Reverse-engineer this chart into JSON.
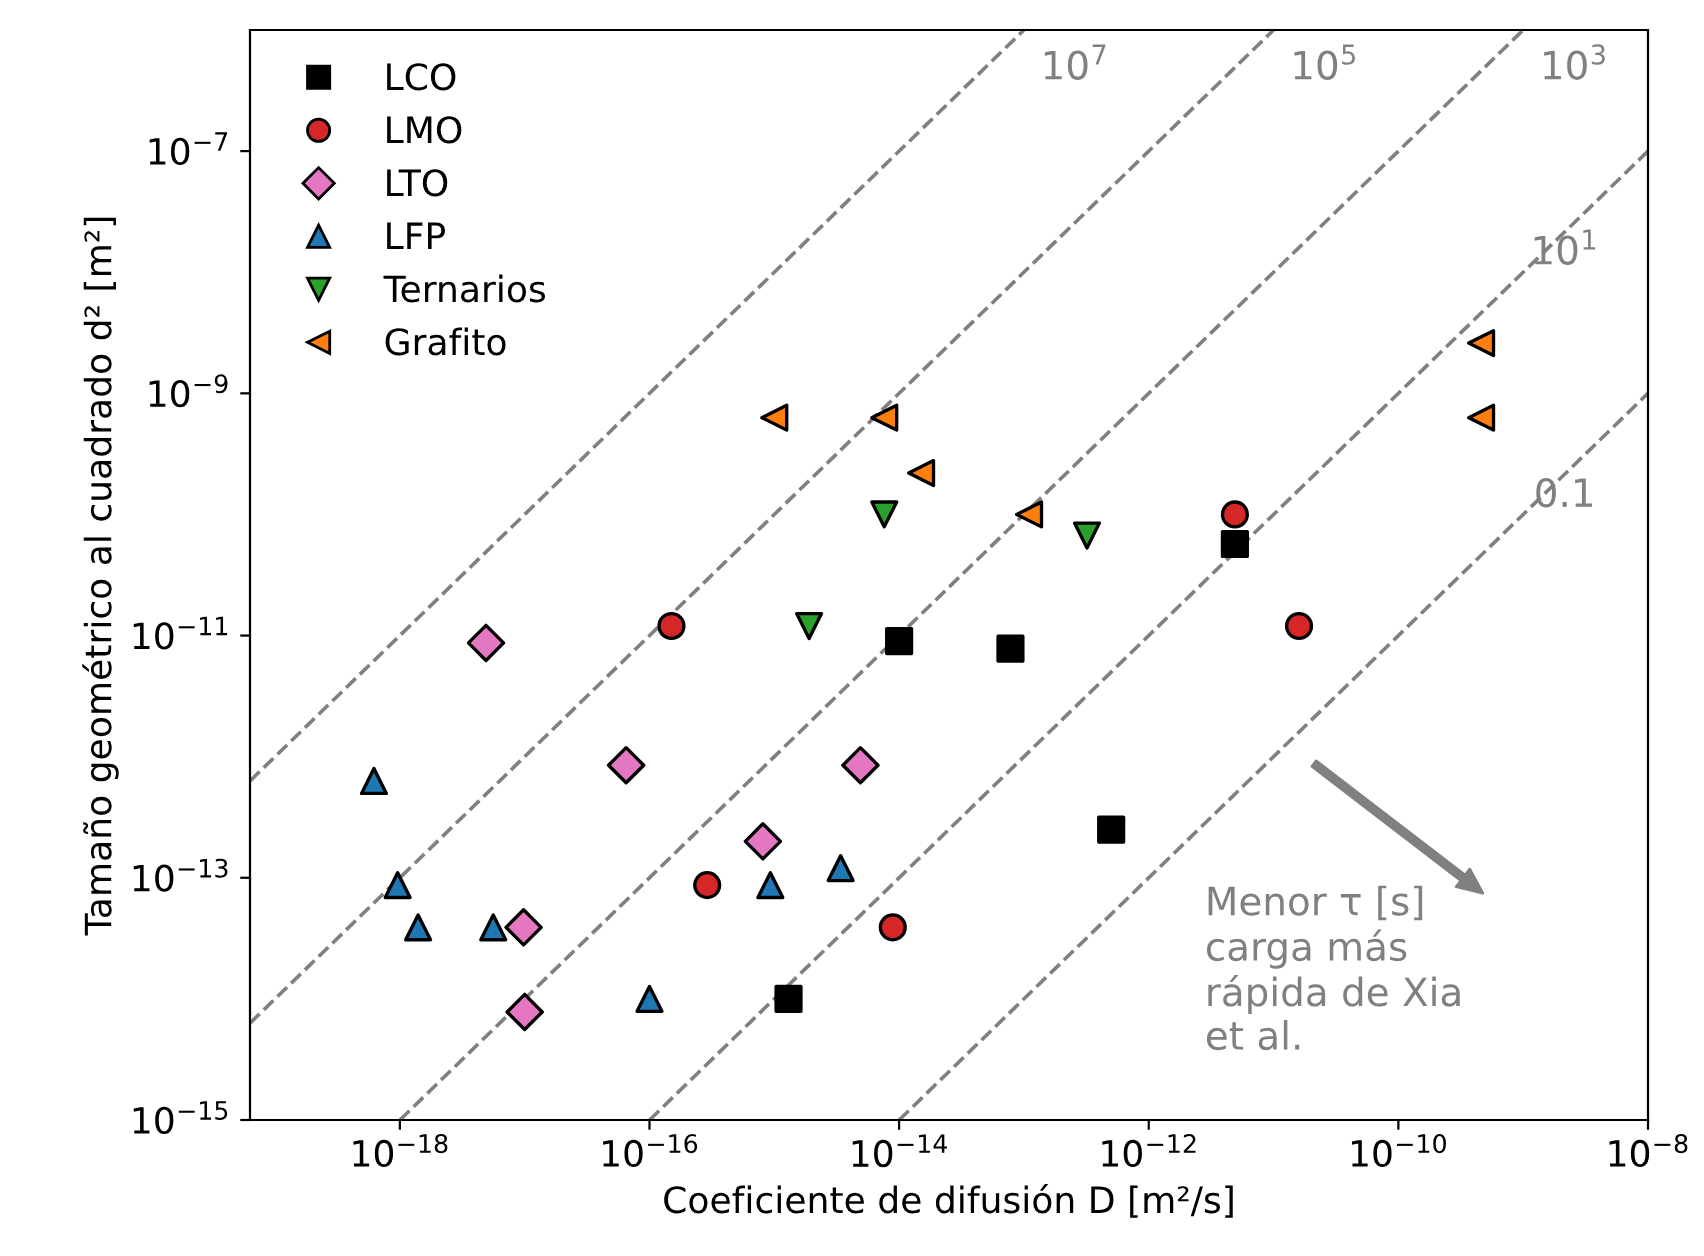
{
  "chart_data": {
    "type": "scatter",
    "xlabel": "Coeficiente de difusión D [m²/s]",
    "ylabel": "Tamaño geométrico al cuadrado d² [m²]",
    "log": "xy",
    "grid": false,
    "legend": "top left",
    "xlim": [
      6.3e-20,
      1e-08
    ],
    "ylim": [
      1e-15,
      1e-06
    ],
    "xticks": [
      {
        "value": 1e-18,
        "label": "10$^{−18}$"
      },
      {
        "value": 1e-16,
        "label": "10$^{−16}$"
      },
      {
        "value": 1e-14,
        "label": "10$^{−14}$"
      },
      {
        "value": 1e-12,
        "label": "10$^{−12}$"
      },
      {
        "value": 1e-10,
        "label": "10$^{−10}$"
      },
      {
        "value": 1e-08,
        "label": "10$^{−8}$"
      }
    ],
    "yticks": [
      {
        "value": 1e-15,
        "label": "10$^{−15}$"
      },
      {
        "value": 1e-13,
        "label": "10$^{−13}$"
      },
      {
        "value": 1e-11,
        "label": "10$^{−11}$"
      },
      {
        "value": 1e-09,
        "label": "10$^{−9}$"
      },
      {
        "value": 1e-07,
        "label": "10$^{−7}$"
      }
    ],
    "series": [
      {
        "name": "10$^{7}$",
        "type": "line",
        "line_style": "dashed",
        "marker": "none",
        "color": "#808080",
        "x": [
          6.3e-20,
          1e-13
        ],
        "values": [
          6.3e-13,
          1e-06
        ]
      },
      {
        "name": "10$^{5}$",
        "type": "line",
        "line_style": "dashed",
        "marker": "none",
        "color": "#808080",
        "x": [
          6.3e-20,
          1e-11
        ],
        "values": [
          6.3e-15,
          1e-06
        ]
      },
      {
        "name": "10$^{3}$",
        "type": "line",
        "line_style": "dashed",
        "marker": "none",
        "color": "#808080",
        "x": [
          1e-18,
          1e-09
        ],
        "values": [
          1e-15,
          1e-06
        ]
      },
      {
        "name": "10$^{1}$",
        "type": "line",
        "line_style": "dashed",
        "marker": "none",
        "color": "#808080",
        "x": [
          1e-16,
          1e-08
        ],
        "values": [
          1e-15,
          1e-07
        ]
      },
      {
        "name": "0.1",
        "type": "line",
        "line_style": "dashed",
        "marker": "none",
        "color": "#808080",
        "x": [
          1e-14,
          1e-08
        ],
        "values": [
          1e-15,
          1e-09
        ]
      },
      {
        "name": "LCO",
        "marker": "square",
        "color": "#000000",
        "x": [
          4.9e-12,
          1e-14,
          7.8e-14,
          5e-13,
          1.3e-15
        ],
        "values": [
          5.7e-11,
          9e-12,
          7.8e-12,
          2.5e-13,
          1e-14
        ]
      },
      {
        "name": "LMO",
        "marker": "circle",
        "color": "#d62728",
        "x": [
          4.9e-12,
          1.6e-11,
          1.5e-16,
          2.9e-16,
          8.9e-15
        ],
        "values": [
          1e-10,
          1.2e-11,
          1.2e-11,
          8.7e-14,
          3.9e-14
        ]
      },
      {
        "name": "LTO",
        "marker": "diamond",
        "color": "#e377c2",
        "x": [
          4.9e-18,
          6.5e-17,
          4.9e-15,
          8.1e-16,
          9.8e-18,
          1e-17
        ],
        "values": [
          8.7e-12,
          8.5e-13,
          8.5e-13,
          2e-13,
          3.9e-14,
          7.8e-15
        ]
      },
      {
        "name": "LFP",
        "marker": "triangle",
        "color": "#1f77b4",
        "x": [
          6.2e-19,
          9.6e-19,
          1.4e-18,
          5.6e-18,
          1e-16,
          9.3e-16,
          3.4e-15
        ],
        "values": [
          6.3e-13,
          8.7e-14,
          3.9e-14,
          3.9e-14,
          1e-14,
          8.7e-14,
          1.2e-13
        ]
      },
      {
        "name": "Ternarios",
        "marker": "triangle_down",
        "color": "#2ca02c",
        "x": [
          7.6e-15,
          1.9e-15,
          3.2e-13
        ],
        "values": [
          1e-10,
          1.2e-11,
          6.7e-11
        ]
      },
      {
        "name": "Grafito",
        "marker": "triangle_left",
        "color": "#ff7f0e",
        "x": [
          1e-15,
          7.6e-15,
          1.5e-14,
          1.1e-13,
          4.6e-10,
          4.6e-10
        ],
        "values": [
          6.3e-10,
          6.3e-10,
          2.2e-10,
          1e-10,
          2.6e-09,
          6.3e-10
        ]
      }
    ],
    "annotations": [
      "Menor τ [s]\ncarga más\nrápida de Xia\net al."
    ]
  }
}
